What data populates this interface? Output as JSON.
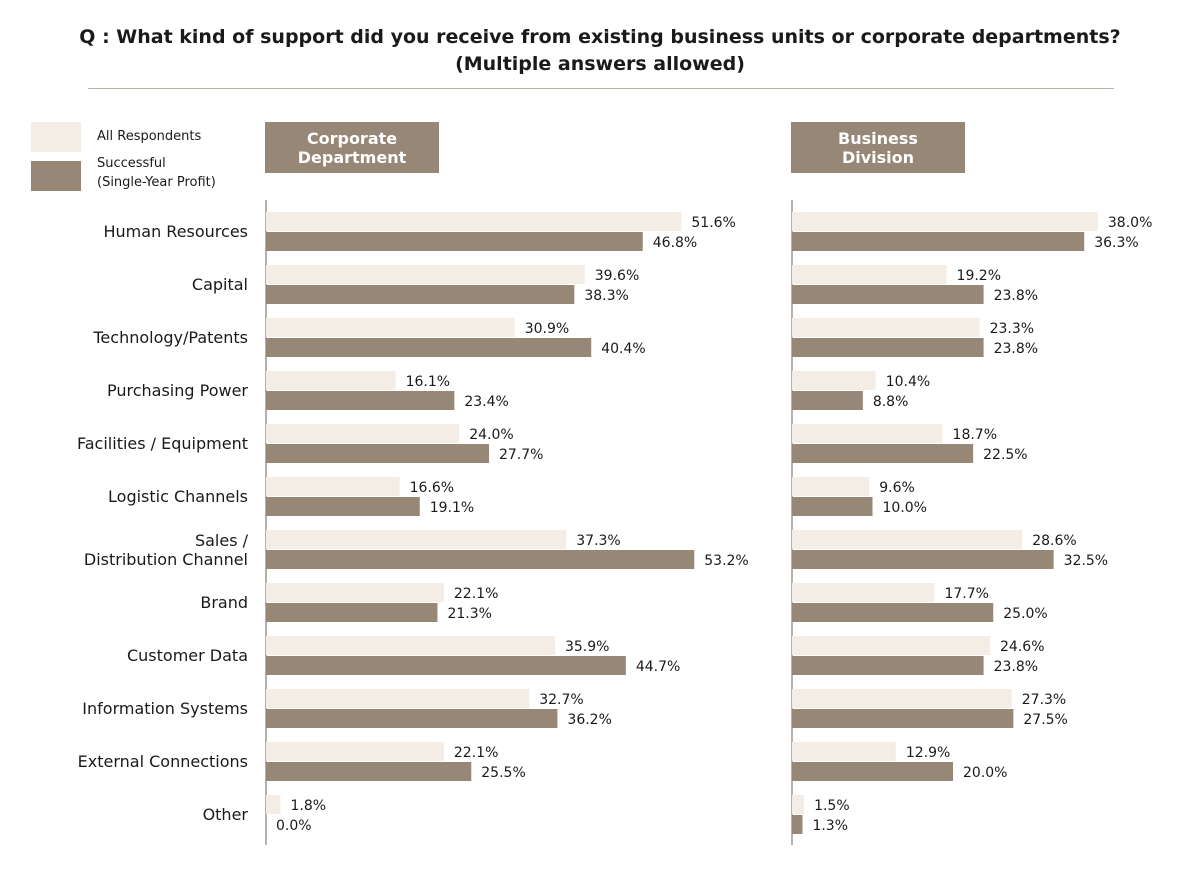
{
  "title": {
    "line1": "Q : What kind of support did you receive from existing business units or corporate departments?",
    "line2": "(Multiple answers allowed)"
  },
  "legend": {
    "all": "All Respondents",
    "successful_line1": "Successful",
    "successful_line2": "(Single-Year Profit)"
  },
  "colors": {
    "all": "#f4ede6",
    "successful": "#968776",
    "header": "#968776",
    "axis": "#a0988c"
  },
  "chart_data": [
    {
      "type": "bar",
      "title": "Corporate Department",
      "categories": [
        "Human Resources",
        "Capital",
        "Technology/Patents",
        "Purchasing Power",
        "Facilities / Equipment",
        "Logistic Channels",
        "Sales / Distribution Channel",
        "Brand",
        "Customer Data",
        "Information Systems",
        "External Connections",
        "Other"
      ],
      "series": [
        {
          "name": "All Respondents",
          "values": [
            51.6,
            39.6,
            30.9,
            16.1,
            24.0,
            16.6,
            37.3,
            22.1,
            35.9,
            32.7,
            22.1,
            1.8
          ],
          "labels": [
            "51.6%",
            "39.6%",
            "30.9%",
            "16.1%",
            "24.0%",
            "16.6%",
            "37.3%",
            "22.1%",
            "35.9%",
            "32.7%",
            "22.1%",
            "1.8%"
          ]
        },
        {
          "name": "Successful (Single-Year Profit)",
          "values": [
            46.8,
            38.3,
            40.4,
            23.4,
            27.7,
            19.1,
            53.2,
            21.3,
            44.7,
            36.2,
            25.5,
            0.0
          ],
          "labels": [
            "46.8%",
            "38.3%",
            "40.4%",
            "23.4%",
            "27.7%",
            "19.1%",
            "53.2%",
            "21.3%",
            "44.7%",
            "36.2%",
            "25.5%",
            "0.0%"
          ]
        }
      ]
    },
    {
      "type": "bar",
      "title": "Business Division",
      "categories": [
        "Human Resources",
        "Capital",
        "Technology/Patents",
        "Purchasing Power",
        "Facilities / Equipment",
        "Logistic Channels",
        "Sales / Distribution Channel",
        "Brand",
        "Customer Data",
        "Information Systems",
        "External Connections",
        "Other"
      ],
      "series": [
        {
          "name": "All Respondents",
          "values": [
            38.0,
            19.2,
            23.3,
            10.4,
            18.7,
            9.6,
            28.6,
            17.7,
            24.6,
            27.3,
            12.9,
            1.5
          ],
          "labels": [
            "38.0%",
            "19.2%",
            "23.3%",
            "10.4%",
            "18.7%",
            "9.6%",
            "28.6%",
            "17.7%",
            "24.6%",
            "27.3%",
            "12.9%",
            "1.5%"
          ]
        },
        {
          "name": "Successful (Single-Year Profit)",
          "values": [
            36.3,
            23.8,
            23.8,
            8.8,
            22.5,
            10.0,
            32.5,
            25.0,
            23.8,
            27.5,
            20.0,
            1.3
          ],
          "labels": [
            "36.3%",
            "23.8%",
            "23.8%",
            "8.8%",
            "22.5%",
            "10.0%",
            "32.5%",
            "25.0%",
            "23.8%",
            "27.5%",
            "20.0%",
            "1.3%"
          ]
        }
      ]
    }
  ],
  "category_display": [
    [
      "Human Resources"
    ],
    [
      "Capital"
    ],
    [
      "Technology/Patents"
    ],
    [
      "Purchasing Power"
    ],
    [
      "Facilities / Equipment"
    ],
    [
      "Logistic Channels"
    ],
    [
      "Sales /",
      "Distribution Channel"
    ],
    [
      "Brand"
    ],
    [
      "Customer Data"
    ],
    [
      "Information Systems"
    ],
    [
      "External Connections"
    ],
    [
      "Other"
    ]
  ],
  "panel_headers": {
    "corporate": {
      "line1": "Corporate",
      "line2": "Department"
    },
    "business": {
      "line1": "Business",
      "line2": "Division"
    }
  }
}
